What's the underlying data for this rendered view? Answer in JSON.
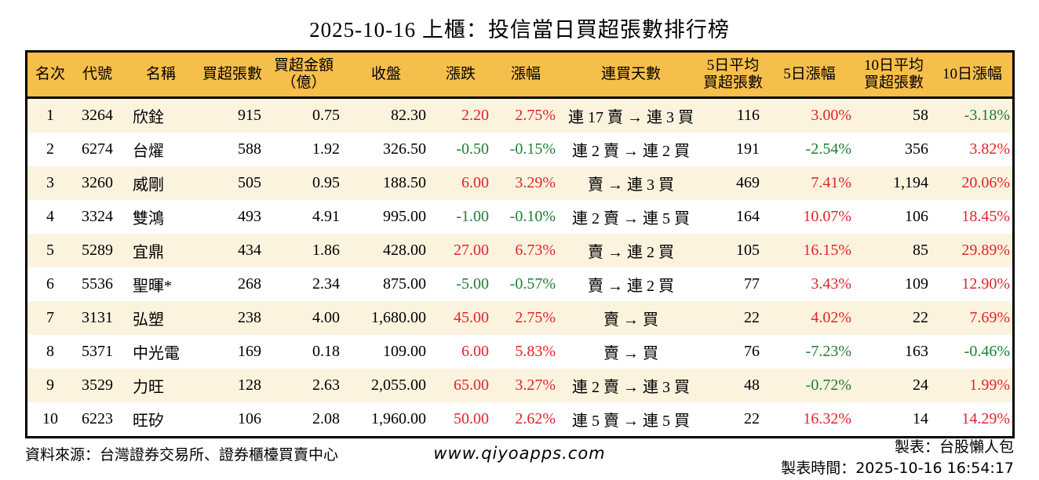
{
  "title": "2025-10-16 上櫃：投信當日買超張數排行榜",
  "colors": {
    "up_red": "#e02428",
    "down_green": "#1e7d32",
    "header_bg": "#f6be4b",
    "row_alt_cream": "#fcf3df",
    "border": "#000000"
  },
  "chart_data": {
    "type": "table",
    "color_convention": "positive values red (up), negative values green (down)",
    "columns": [
      {
        "key": "rank",
        "label": "名次"
      },
      {
        "key": "code",
        "label": "代號"
      },
      {
        "key": "name",
        "label": "名稱"
      },
      {
        "key": "net_buy",
        "label": "買超張數"
      },
      {
        "key": "net_amount",
        "label": "買超金額\n（億）"
      },
      {
        "key": "close",
        "label": "收盤"
      },
      {
        "key": "change",
        "label": "漲跌"
      },
      {
        "key": "change_pct",
        "label": "漲幅"
      },
      {
        "key": "streak",
        "label": "連買天數"
      },
      {
        "key": "avg5",
        "label": "5日平均\n買超張數"
      },
      {
        "key": "pct5",
        "label": "5日漲幅"
      },
      {
        "key": "avg10",
        "label": "10日平均\n買超張數"
      },
      {
        "key": "pct10",
        "label": "10日漲幅"
      }
    ],
    "signed_columns": [
      "change",
      "change_pct",
      "pct5",
      "pct10"
    ],
    "rows": [
      {
        "rank": "1",
        "code": "3264",
        "name": "欣銓",
        "net_buy": "915",
        "net_amount": "0.75",
        "close": "82.30",
        "change": "2.20",
        "change_pct": "2.75%",
        "streak": "連 17 賣 → 連 3 買",
        "avg5": "116",
        "pct5": "3.00%",
        "avg10": "58",
        "pct10": "-3.18%"
      },
      {
        "rank": "2",
        "code": "6274",
        "name": "台燿",
        "net_buy": "588",
        "net_amount": "1.92",
        "close": "326.50",
        "change": "-0.50",
        "change_pct": "-0.15%",
        "streak": "連 2 賣 → 連 2 買",
        "avg5": "191",
        "pct5": "-2.54%",
        "avg10": "356",
        "pct10": "3.82%"
      },
      {
        "rank": "3",
        "code": "3260",
        "name": "威剛",
        "net_buy": "505",
        "net_amount": "0.95",
        "close": "188.50",
        "change": "6.00",
        "change_pct": "3.29%",
        "streak": "賣 → 連 3 買",
        "avg5": "469",
        "pct5": "7.41%",
        "avg10": "1,194",
        "pct10": "20.06%"
      },
      {
        "rank": "4",
        "code": "3324",
        "name": "雙鴻",
        "net_buy": "493",
        "net_amount": "4.91",
        "close": "995.00",
        "change": "-1.00",
        "change_pct": "-0.10%",
        "streak": "連 2 賣 → 連 5 買",
        "avg5": "164",
        "pct5": "10.07%",
        "avg10": "106",
        "pct10": "18.45%"
      },
      {
        "rank": "5",
        "code": "5289",
        "name": "宜鼎",
        "net_buy": "434",
        "net_amount": "1.86",
        "close": "428.00",
        "change": "27.00",
        "change_pct": "6.73%",
        "streak": "賣 → 連 2 買",
        "avg5": "105",
        "pct5": "16.15%",
        "avg10": "85",
        "pct10": "29.89%"
      },
      {
        "rank": "6",
        "code": "5536",
        "name": "聖暉*",
        "net_buy": "268",
        "net_amount": "2.34",
        "close": "875.00",
        "change": "-5.00",
        "change_pct": "-0.57%",
        "streak": "賣 → 連 2 買",
        "avg5": "77",
        "pct5": "3.43%",
        "avg10": "109",
        "pct10": "12.90%"
      },
      {
        "rank": "7",
        "code": "3131",
        "name": "弘塑",
        "net_buy": "238",
        "net_amount": "4.00",
        "close": "1,680.00",
        "change": "45.00",
        "change_pct": "2.75%",
        "streak": "賣 → 買",
        "avg5": "22",
        "pct5": "4.02%",
        "avg10": "22",
        "pct10": "7.69%"
      },
      {
        "rank": "8",
        "code": "5371",
        "name": "中光電",
        "net_buy": "169",
        "net_amount": "0.18",
        "close": "109.00",
        "change": "6.00",
        "change_pct": "5.83%",
        "streak": "賣 → 買",
        "avg5": "76",
        "pct5": "-7.23%",
        "avg10": "163",
        "pct10": "-0.46%"
      },
      {
        "rank": "9",
        "code": "3529",
        "name": "力旺",
        "net_buy": "128",
        "net_amount": "2.63",
        "close": "2,055.00",
        "change": "65.00",
        "change_pct": "3.27%",
        "streak": "連 2 賣 → 連 3 買",
        "avg5": "48",
        "pct5": "-0.72%",
        "avg10": "24",
        "pct10": "1.99%"
      },
      {
        "rank": "10",
        "code": "6223",
        "name": "旺矽",
        "net_buy": "106",
        "net_amount": "2.08",
        "close": "1,960.00",
        "change": "50.00",
        "change_pct": "2.62%",
        "streak": "連 5 賣 → 連 5 買",
        "avg5": "22",
        "pct5": "16.32%",
        "avg10": "14",
        "pct10": "14.29%"
      }
    ]
  },
  "footer": {
    "source": "資料來源：台灣證券交易所、證券櫃檯買賣中心",
    "site": "www.qiyoapps.com",
    "made_by": "製表：台股懶人包",
    "made_time_label": "製表時間：",
    "made_time": "2025-10-16 16:54:17"
  }
}
